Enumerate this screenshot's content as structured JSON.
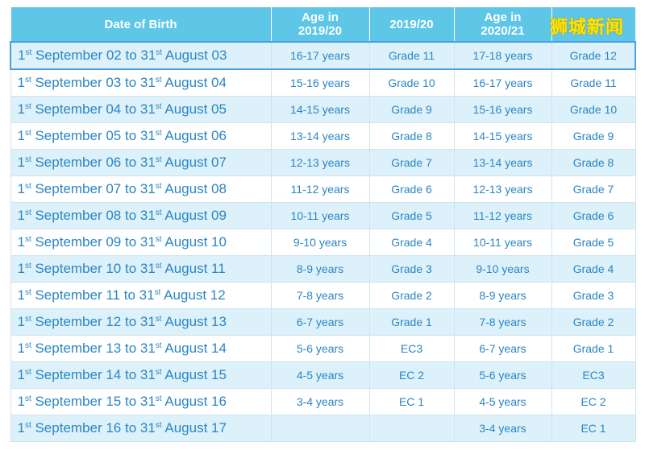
{
  "table": {
    "header": [
      "Date of Birth",
      "Age in\n2019/20",
      "2019/20",
      "Age in\n2020/21",
      null
    ],
    "rows": [
      [
        "1st September 02 to 31st August 03",
        "16-17 years",
        "Grade 11",
        "17-18 years",
        "Grade 12"
      ],
      [
        "1st September 03 to 31st August 04",
        "15-16 years",
        "Grade 10",
        "16-17 years",
        "Grade 11"
      ],
      [
        "1st September 04 to 31st August 05",
        "14-15 years",
        "Grade 9",
        "15-16 years",
        "Grade 10"
      ],
      [
        "1st September 05 to 31st August 06",
        "13-14 years",
        "Grade 8",
        "14-15 years",
        "Grade 9"
      ],
      [
        "1st September 06 to 31st August 07",
        "12-13 years",
        "Grade 7",
        "13-14 years",
        "Grade 8"
      ],
      [
        "1st September 07 to 31st August 08",
        "11-12 years",
        "Grade 6",
        "12-13 years",
        "Grade 7"
      ],
      [
        "1st September 08 to 31st August 09",
        "10-11 years",
        "Grade 5",
        "11-12 years",
        "Grade 6"
      ],
      [
        "1st September 09 to 31st August 10",
        "9-10 years",
        "Grade 4",
        "10-11 years",
        "Grade 5"
      ],
      [
        "1st September 10 to 31st August 11",
        "8-9 years",
        "Grade 3",
        "9-10 years",
        "Grade 4"
      ],
      [
        "1st September 11 to 31st August 12",
        "7-8 years",
        "Grade 2",
        "8-9 years",
        "Grade 3"
      ],
      [
        "1st September 12 to 31st August 13",
        "6-7 years",
        "Grade 1",
        "7-8 years",
        "Grade 2"
      ],
      [
        "1st September 13 to 31st August 14",
        "5-6 years",
        "EC3",
        "6-7 years",
        "Grade 1"
      ],
      [
        "1st September 14 to 31st August 15",
        "4-5 years",
        "EC 2",
        "5-6 years",
        "EC3"
      ],
      [
        "1st September 15 to 31st August 16",
        "3-4 years",
        "EC 1",
        "4-5 years",
        "EC 2"
      ],
      [
        "1st September 16 to 31st August 17",
        null,
        null,
        "3-4 years",
        "EC 1"
      ]
    ]
  },
  "watermark": "狮城新闻"
}
